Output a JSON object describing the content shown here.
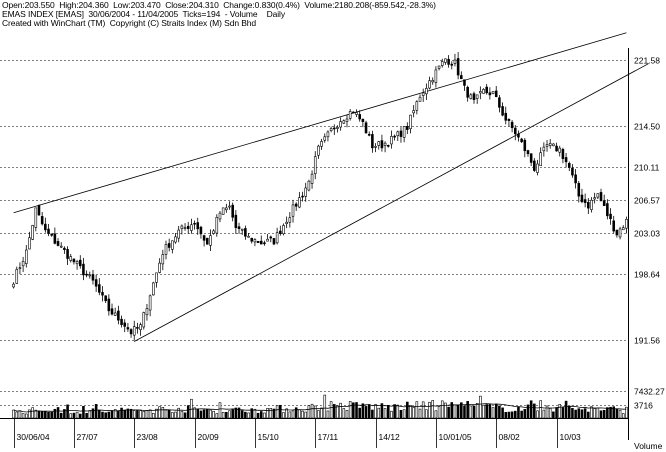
{
  "header": {
    "line1": "Open:203.550  High:204.360  Low:203.470  Close:204.310  Change:0.830(0.4%)  Volume:2180.208(-859.542,-28.3%)",
    "line2": "EMAS INDEX [EMAS]  30/06/2004 - 11/04/2005  Ticks=194  - Volume    Daily",
    "line3": "Created with WinChart (TM)  Copyright (C) Straits Index (M) Sdn Bhd"
  },
  "chart_data": {
    "type": "candlestick",
    "price_axis": {
      "ticks": [
        {
          "label": "221.58",
          "value": 221.58
        },
        {
          "label": "214.50",
          "value": 214.5
        },
        {
          "label": "210.11",
          "value": 210.11
        },
        {
          "label": "206.57",
          "value": 206.57
        },
        {
          "label": "203.03",
          "value": 203.03
        },
        {
          "label": "198.64",
          "value": 198.64
        },
        {
          "label": "191.56",
          "value": 191.56
        }
      ],
      "grid": "dashed"
    },
    "volume_axis": {
      "ticks": [
        {
          "label": "7432.27",
          "value": 7432.27
        },
        {
          "label": "3716",
          "value": 3716
        }
      ],
      "label": "Volume"
    },
    "x_labels": [
      "30/06/04",
      "27/07",
      "23/08",
      "20/09",
      "15/10",
      "17/11",
      "14/12",
      "10/01/05",
      "08/02",
      "10/03"
    ],
    "x_label_index": [
      0,
      19,
      38,
      57,
      76,
      95,
      114,
      133,
      152,
      171
    ],
    "keypoints": [
      [
        0,
        198.0
      ],
      [
        4,
        201.0
      ],
      [
        7,
        205.5
      ],
      [
        10,
        203.2
      ],
      [
        14,
        201.8
      ],
      [
        20,
        199.6
      ],
      [
        25,
        197.8
      ],
      [
        30,
        194.8
      ],
      [
        35,
        193.2
      ],
      [
        37,
        192.4
      ],
      [
        40,
        193.0
      ],
      [
        43,
        196.5
      ],
      [
        47,
        201.0
      ],
      [
        52,
        203.2
      ],
      [
        57,
        204.2
      ],
      [
        61,
        201.8
      ],
      [
        65,
        205.2
      ],
      [
        68,
        205.8
      ],
      [
        70,
        203.6
      ],
      [
        74,
        202.5
      ],
      [
        78,
        202.0
      ],
      [
        82,
        202.2
      ],
      [
        86,
        204.5
      ],
      [
        90,
        206.7
      ],
      [
        93,
        208.5
      ],
      [
        96,
        212.0
      ],
      [
        100,
        214.0
      ],
      [
        103,
        215.2
      ],
      [
        107,
        216.2
      ],
      [
        110,
        214.8
      ],
      [
        113,
        212.4
      ],
      [
        116,
        212.5
      ],
      [
        120,
        213.2
      ],
      [
        124,
        214.4
      ],
      [
        128,
        217.8
      ],
      [
        132,
        219.8
      ],
      [
        136,
        221.7
      ],
      [
        139,
        221.2
      ],
      [
        142,
        218.5
      ],
      [
        145,
        217.0
      ],
      [
        148,
        218.2
      ],
      [
        151,
        218.0
      ],
      [
        155,
        215.2
      ],
      [
        158,
        213.8
      ],
      [
        161,
        212.0
      ],
      [
        164,
        210.0
      ],
      [
        168,
        212.4
      ],
      [
        172,
        212.0
      ],
      [
        175,
        210.0
      ],
      [
        178,
        207.0
      ],
      [
        181,
        206.0
      ],
      [
        184,
        207.2
      ],
      [
        187,
        205.0
      ],
      [
        190,
        203.0
      ],
      [
        193,
        204.3
      ]
    ],
    "trendlines": [
      {
        "from": [
          0,
          205.2
        ],
        "to": [
          193,
          224.5
        ]
      },
      {
        "from": [
          38,
          191.4
        ],
        "to": [
          200,
          221.2
        ]
      }
    ],
    "volume_keypoints": [
      [
        0,
        1700
      ],
      [
        10,
        2200
      ],
      [
        20,
        1900
      ],
      [
        30,
        1800
      ],
      [
        40,
        2000
      ],
      [
        50,
        2600
      ],
      [
        60,
        2200
      ],
      [
        70,
        2100
      ],
      [
        80,
        2400
      ],
      [
        90,
        2600
      ],
      [
        100,
        3400
      ],
      [
        110,
        3200
      ],
      [
        120,
        2900
      ],
      [
        130,
        3300
      ],
      [
        140,
        3600
      ],
      [
        150,
        2800
      ],
      [
        160,
        2600
      ],
      [
        170,
        2900
      ],
      [
        180,
        2500
      ],
      [
        193,
        2180
      ]
    ]
  },
  "colors": {
    "candle_up": "#ffffff",
    "candle_down": "#000000",
    "axis": "#000000",
    "grid": "#000000"
  }
}
